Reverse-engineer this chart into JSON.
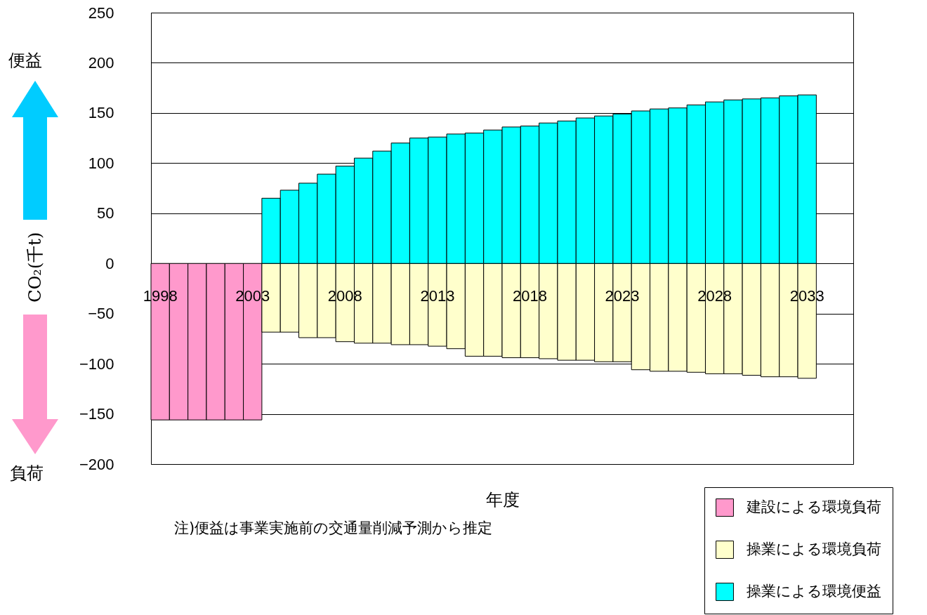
{
  "chart_data": {
    "type": "bar",
    "stacked": true,
    "categories": [
      "1998",
      null,
      null,
      null,
      null,
      "2003",
      null,
      null,
      null,
      null,
      "2008",
      null,
      null,
      null,
      null,
      "2013",
      null,
      null,
      null,
      null,
      "2018",
      null,
      null,
      null,
      null,
      "2023",
      null,
      null,
      null,
      null,
      "2028",
      null,
      null,
      null,
      null,
      "2033"
    ],
    "series": [
      {
        "name": "建設による環境負荷",
        "color": "#ff99cc",
        "values": [
          -156,
          -156,
          -156,
          -156,
          -156,
          -156,
          null,
          null,
          null,
          null,
          null,
          null,
          null,
          null,
          null,
          null,
          null,
          null,
          null,
          null,
          null,
          null,
          null,
          null,
          null,
          null,
          null,
          null,
          null,
          null,
          null,
          null,
          null,
          null,
          null,
          null
        ]
      },
      {
        "name": "操業による環境負荷",
        "color": "#ffffcc",
        "values": [
          null,
          null,
          null,
          null,
          null,
          null,
          -68.5,
          -68.5,
          -74,
          -74,
          -78,
          -79.5,
          -79.5,
          -81,
          -81,
          -82.5,
          -85,
          -92.5,
          -92.5,
          -94,
          -94,
          -95,
          -96.5,
          -96.5,
          -98,
          -98,
          -106,
          -107.5,
          -107.5,
          -108.5,
          -110,
          -110,
          -111.5,
          -113,
          -113,
          -114.5
        ]
      },
      {
        "name": "操業による環境便益",
        "color": "#00ffff",
        "values": [
          null,
          null,
          null,
          null,
          null,
          null,
          65,
          73,
          80,
          89,
          97,
          105,
          112,
          120,
          125,
          126,
          129,
          130,
          133,
          136,
          137,
          140,
          142,
          145,
          147,
          149,
          152,
          154,
          155,
          158,
          161,
          163,
          164,
          165,
          167,
          168
        ]
      }
    ],
    "ylim": [
      -200,
      250
    ],
    "yticks": [
      {
        "value": -200,
        "label": "−200"
      },
      {
        "value": -150,
        "label": "−150"
      },
      {
        "value": -100,
        "label": "−100"
      },
      {
        "value": -50,
        "label": "−50"
      },
      0,
      50,
      100,
      150,
      200,
      250
    ],
    "grid": "y",
    "legend": "bottom right",
    "xlabel": "年度",
    "ylabel": "CO₂(千t)",
    "annotations": [
      "便益",
      "負荷",
      "注)便益は事業実施前の交通量削減予測から推定"
    ]
  }
}
